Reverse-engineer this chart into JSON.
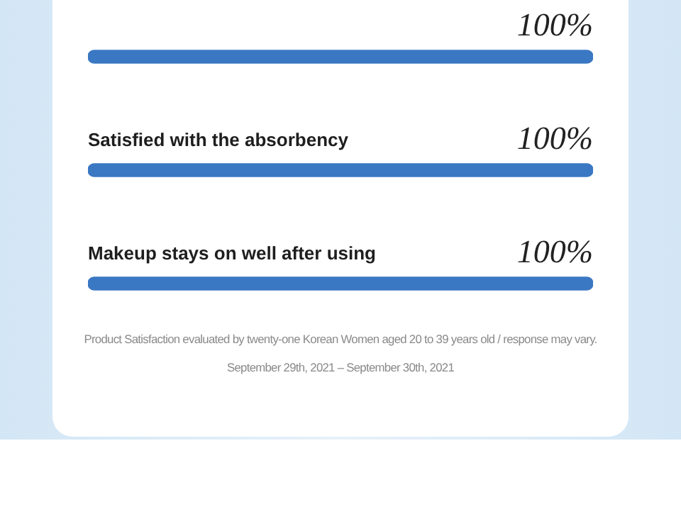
{
  "chart_data": {
    "type": "bar",
    "orientation": "horizontal",
    "categories": [
      null,
      "Satisfied with the absorbency",
      "Makeup stays on well after using"
    ],
    "values": [
      100,
      100,
      100
    ],
    "value_labels": [
      "100%",
      "100%",
      "100%"
    ],
    "color": "#3b78c3",
    "tick_labels": false,
    "annotations": [
      "Product Satisfaction evaluated by twenty-one Korean Women aged 20 to 39 years old / response may vary.",
      "September 29th, 2021 – September 30th, 2021"
    ]
  }
}
